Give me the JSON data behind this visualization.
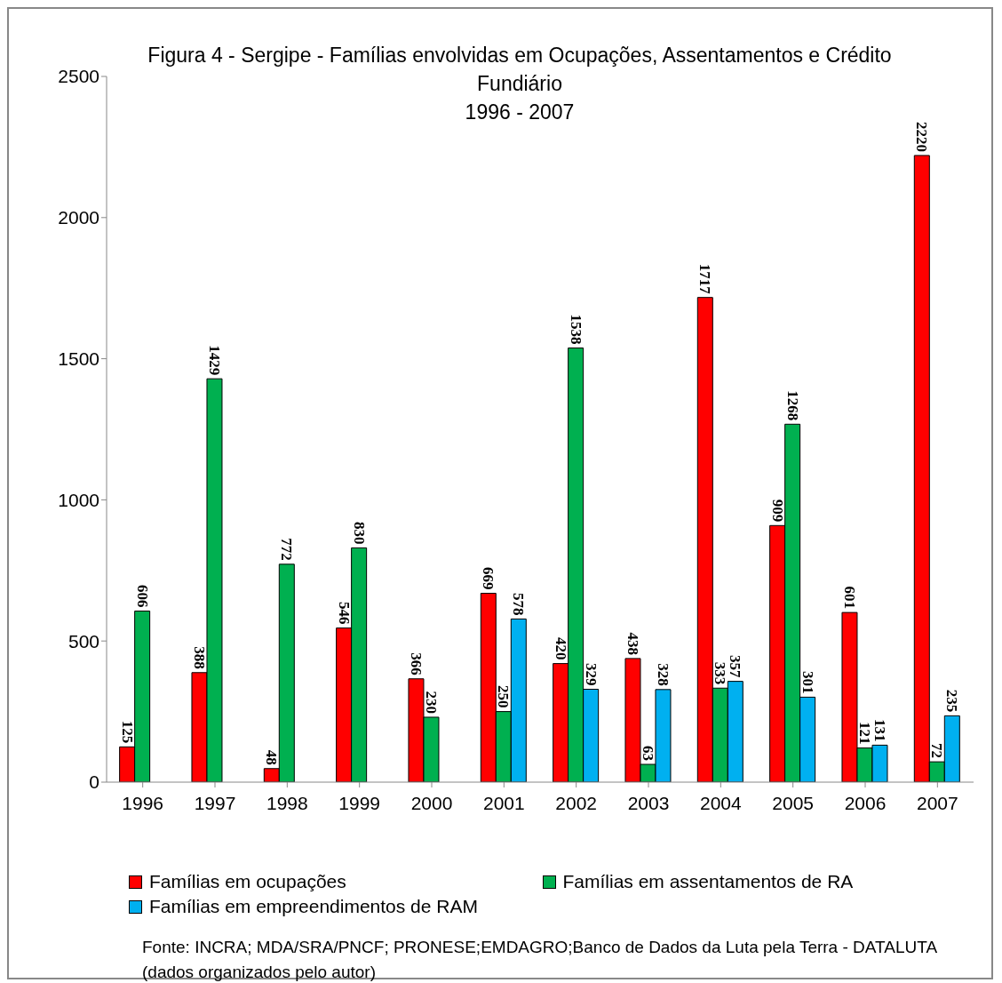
{
  "chart_data": {
    "type": "bar",
    "title": "Figura 4 - Sergipe - Famílias envolvidas em Ocupações, Assentamentos e Crédito Fundiário",
    "subtitle": "1996 - 2007",
    "categories": [
      "1996",
      "1997",
      "1998",
      "1999",
      "2000",
      "2001",
      "2002",
      "2003",
      "2004",
      "2005",
      "2006",
      "2007"
    ],
    "series": [
      {
        "name": "Famílias em ocupações",
        "color": "#ff0000",
        "values": [
          125,
          388,
          48,
          546,
          366,
          669,
          420,
          438,
          1717,
          909,
          601,
          2220
        ]
      },
      {
        "name": "Famílias em assentamentos de RA",
        "color": "#00b050",
        "values": [
          606,
          1429,
          772,
          830,
          230,
          250,
          1538,
          63,
          333,
          1268,
          121,
          72
        ]
      },
      {
        "name": "Famílias em empreendimentos de RAM",
        "color": "#00b0f0",
        "values": [
          null,
          null,
          null,
          null,
          null,
          578,
          329,
          328,
          357,
          301,
          131,
          235
        ]
      }
    ],
    "ylim": [
      0,
      2500
    ],
    "yticks": [
      0,
      500,
      1000,
      1500,
      2000,
      2500
    ],
    "grid": false,
    "legend": "bottom",
    "data_labels": true,
    "annotations": [
      "Fonte: INCRA; MDA/SRA/PNCF; PRONESE;EMDAGRO;Banco de Dados da Luta pela Terra - DATALUTA (dados organizados pelo autor)"
    ]
  }
}
